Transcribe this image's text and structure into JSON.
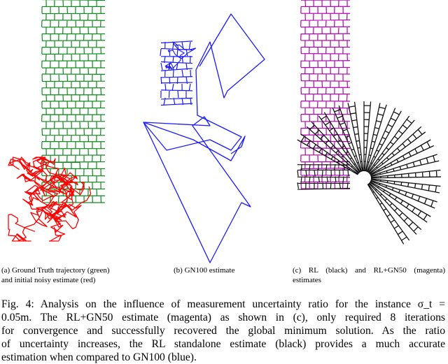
{
  "figure": {
    "panels": [
      {
        "id": "a",
        "subcaption_lines": [
          "(a) Ground Truth trajectory (green)",
          "and initial noisy estimate (red)"
        ],
        "colors": {
          "ground_truth": "#0a8a1a",
          "noisy": "#ff0000"
        }
      },
      {
        "id": "b",
        "subcaption_lines": [
          "(b) GN100 estimate"
        ],
        "colors": {
          "estimate": "#1a1aff"
        }
      },
      {
        "id": "c",
        "subcaption_lines": [
          "(c)  RL  (black)  and  RL+GN50  (magenta)",
          "estimates"
        ],
        "colors": {
          "rl": "#111111",
          "rl_gn50": "#b000b0"
        }
      }
    ]
  },
  "caption": {
    "lines": [
      "Fig. 4: Analysis on the influence of measurement uncertainty ratio for the instance σ_t =",
      "0.05m. The RL+GN50 estimate (magenta) as shown in (c), only required 8 iterations",
      "for convergence and successfully recovered the global minimum solution. As the ratio",
      "of uncertainty increases, the RL standalone estimate (black) provides a much accurate",
      "estimation when compared to GN100 (blue)."
    ]
  }
}
